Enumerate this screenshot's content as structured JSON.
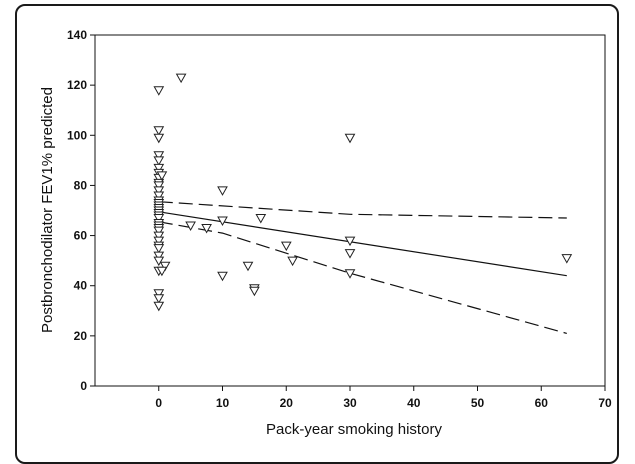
{
  "chart_data": {
    "type": "scatter",
    "title": "",
    "xlabel": "Pack-year smoking history",
    "ylabel": "Postbronchodilator FEV1% predicted",
    "xlim": [
      -10,
      70
    ],
    "ylim": [
      0,
      140
    ],
    "xticks": [
      0,
      10,
      20,
      30,
      40,
      50,
      60,
      70
    ],
    "yticks": [
      0,
      20,
      40,
      60,
      80,
      100,
      120,
      140
    ],
    "xtick_labels": [
      "0",
      "10",
      "20",
      "30",
      "40",
      "50",
      "60",
      "70"
    ],
    "ytick_labels": [
      "0",
      "20",
      "40",
      "60",
      "80",
      "100",
      "120",
      "140"
    ],
    "grid": false,
    "legend": "none",
    "marker": "downward-triangle",
    "series": [
      {
        "points": [
          [
            0,
            118
          ],
          [
            0,
            102
          ],
          [
            0,
            99
          ],
          [
            0,
            92
          ],
          [
            0,
            90
          ],
          [
            0,
            87
          ],
          [
            0,
            85
          ],
          [
            0,
            83
          ],
          [
            0,
            81
          ],
          [
            0,
            80
          ],
          [
            0,
            78
          ],
          [
            0,
            76
          ],
          [
            0,
            74
          ],
          [
            0,
            73
          ],
          [
            0,
            72
          ],
          [
            0,
            71
          ],
          [
            0,
            70
          ],
          [
            0,
            69
          ],
          [
            0,
            68
          ],
          [
            0,
            67
          ],
          [
            0,
            65
          ],
          [
            0,
            64
          ],
          [
            0,
            63
          ],
          [
            0,
            62
          ],
          [
            0,
            60
          ],
          [
            0,
            58
          ],
          [
            0,
            56
          ],
          [
            0,
            55
          ],
          [
            0,
            52
          ],
          [
            0,
            50
          ],
          [
            0,
            46
          ],
          [
            0,
            37
          ],
          [
            0,
            35
          ],
          [
            0,
            32
          ],
          [
            0.5,
            84
          ],
          [
            1,
            48
          ],
          [
            0.5,
            46
          ],
          [
            3.5,
            123
          ],
          [
            5,
            64
          ],
          [
            7.5,
            63
          ],
          [
            10,
            78
          ],
          [
            10,
            66
          ],
          [
            10,
            44
          ],
          [
            14,
            48
          ],
          [
            15,
            39
          ],
          [
            15,
            38
          ],
          [
            16,
            67
          ],
          [
            20,
            56
          ],
          [
            21,
            50
          ],
          [
            30,
            99
          ],
          [
            30,
            58
          ],
          [
            30,
            53
          ],
          [
            30,
            45
          ],
          [
            64,
            51
          ]
        ]
      }
    ],
    "fit_line": {
      "style": "solid",
      "points": [
        [
          0,
          69.5
        ],
        [
          64,
          44
        ]
      ]
    },
    "ci_upper": {
      "style": "dashed",
      "points": [
        [
          0,
          73.5
        ],
        [
          30,
          68.5
        ],
        [
          64,
          67
        ]
      ]
    },
    "ci_lower": {
      "style": "dashed",
      "points": [
        [
          0,
          65.5
        ],
        [
          10,
          61
        ],
        [
          30,
          45
        ],
        [
          64,
          21
        ]
      ]
    },
    "colors": {
      "marker_stroke": "#222222",
      "line": "#111111",
      "frame": "#1a1a1a"
    }
  }
}
